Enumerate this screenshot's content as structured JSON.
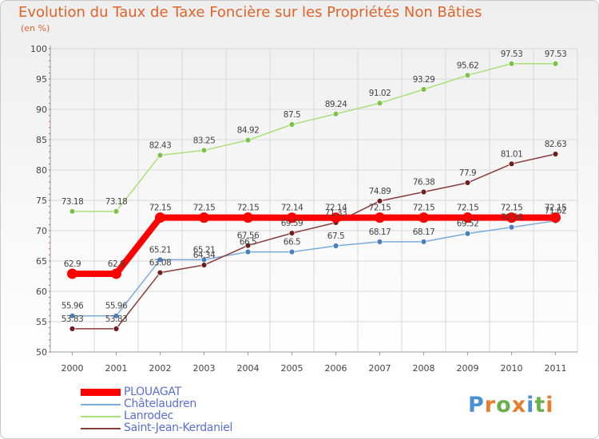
{
  "title": "Evolution du Taux de Taxe Foncière sur les Propriétés Non Bâties",
  "unit_label": "(en %)",
  "logo": {
    "text": "Proxiti",
    "letter_colors": [
      "#4a8fd6",
      "#e87d2b",
      "#6ab04c",
      "#e87d2b",
      "#4a8fd6",
      "#6ab04c",
      "#e87d2b"
    ]
  },
  "chart_data": {
    "type": "line",
    "title": "Evolution du Taux de Taxe Foncière sur les Propriétés Non Bâties",
    "ylabel": "(en %)",
    "xlabel": "",
    "x": [
      "2000",
      "2001",
      "2002",
      "2003",
      "2004",
      "2005",
      "2006",
      "2007",
      "2008",
      "2009",
      "2010",
      "2011"
    ],
    "ylim": [
      50,
      100
    ],
    "yticks": [
      50,
      55,
      60,
      65,
      70,
      75,
      80,
      85,
      90,
      95,
      100
    ],
    "grid": true,
    "legend_position": "bottom-left",
    "series": [
      {
        "name": "PLOUAGAT",
        "color": "#ff0000",
        "marker_color": "#ff0000",
        "emphasis": true,
        "values": [
          62.9,
          62.9,
          72.15,
          72.15,
          72.15,
          72.14,
          72.14,
          72.15,
          72.15,
          72.15,
          72.15,
          72.15
        ],
        "labels": [
          "62.9",
          "62.9",
          "72.15",
          "72.15",
          "72.15",
          "72.14",
          "72.14",
          "72.15",
          "72.15",
          "72.15",
          "72.15",
          "72.15"
        ]
      },
      {
        "name": "Châtelaudren",
        "color": "#7aabdc",
        "marker_color": "#4a7fbf",
        "emphasis": false,
        "values": [
          55.96,
          55.96,
          65.21,
          65.21,
          66.5,
          66.5,
          67.5,
          68.17,
          68.17,
          69.52,
          70.56,
          71.62
        ],
        "labels": [
          "55.96",
          "55.96",
          "65.21",
          "65.21",
          "66.5",
          "66.5",
          "67.5",
          "68.17",
          "68.17",
          "69.52",
          "70.56",
          "71.62"
        ]
      },
      {
        "name": "Lanrodec",
        "color": "#a8e07a",
        "marker_color": "#7cc24a",
        "emphasis": false,
        "values": [
          73.18,
          73.18,
          82.43,
          83.25,
          84.92,
          87.5,
          89.24,
          91.02,
          93.29,
          95.62,
          97.53,
          97.53
        ],
        "labels": [
          "73.18",
          "73.18",
          "82.43",
          "83.25",
          "84.92",
          "87.5",
          "89.24",
          "91.02",
          "93.29",
          "95.62",
          "97.53",
          "97.53"
        ]
      },
      {
        "name": "Saint-Jean-Kerdaniel",
        "color": "#8b3a3a",
        "marker_color": "#6b1f1f",
        "emphasis": false,
        "values": [
          53.83,
          53.83,
          63.08,
          64.34,
          67.56,
          69.59,
          71.33,
          74.89,
          76.38,
          77.9,
          81.01,
          82.63
        ],
        "labels": [
          "53.83",
          "53.83",
          "63.08",
          "64.34",
          "67.56",
          "69.59",
          "71.33",
          "74.89",
          "76.38",
          "77.9",
          "81.01",
          "82.63"
        ]
      }
    ]
  }
}
